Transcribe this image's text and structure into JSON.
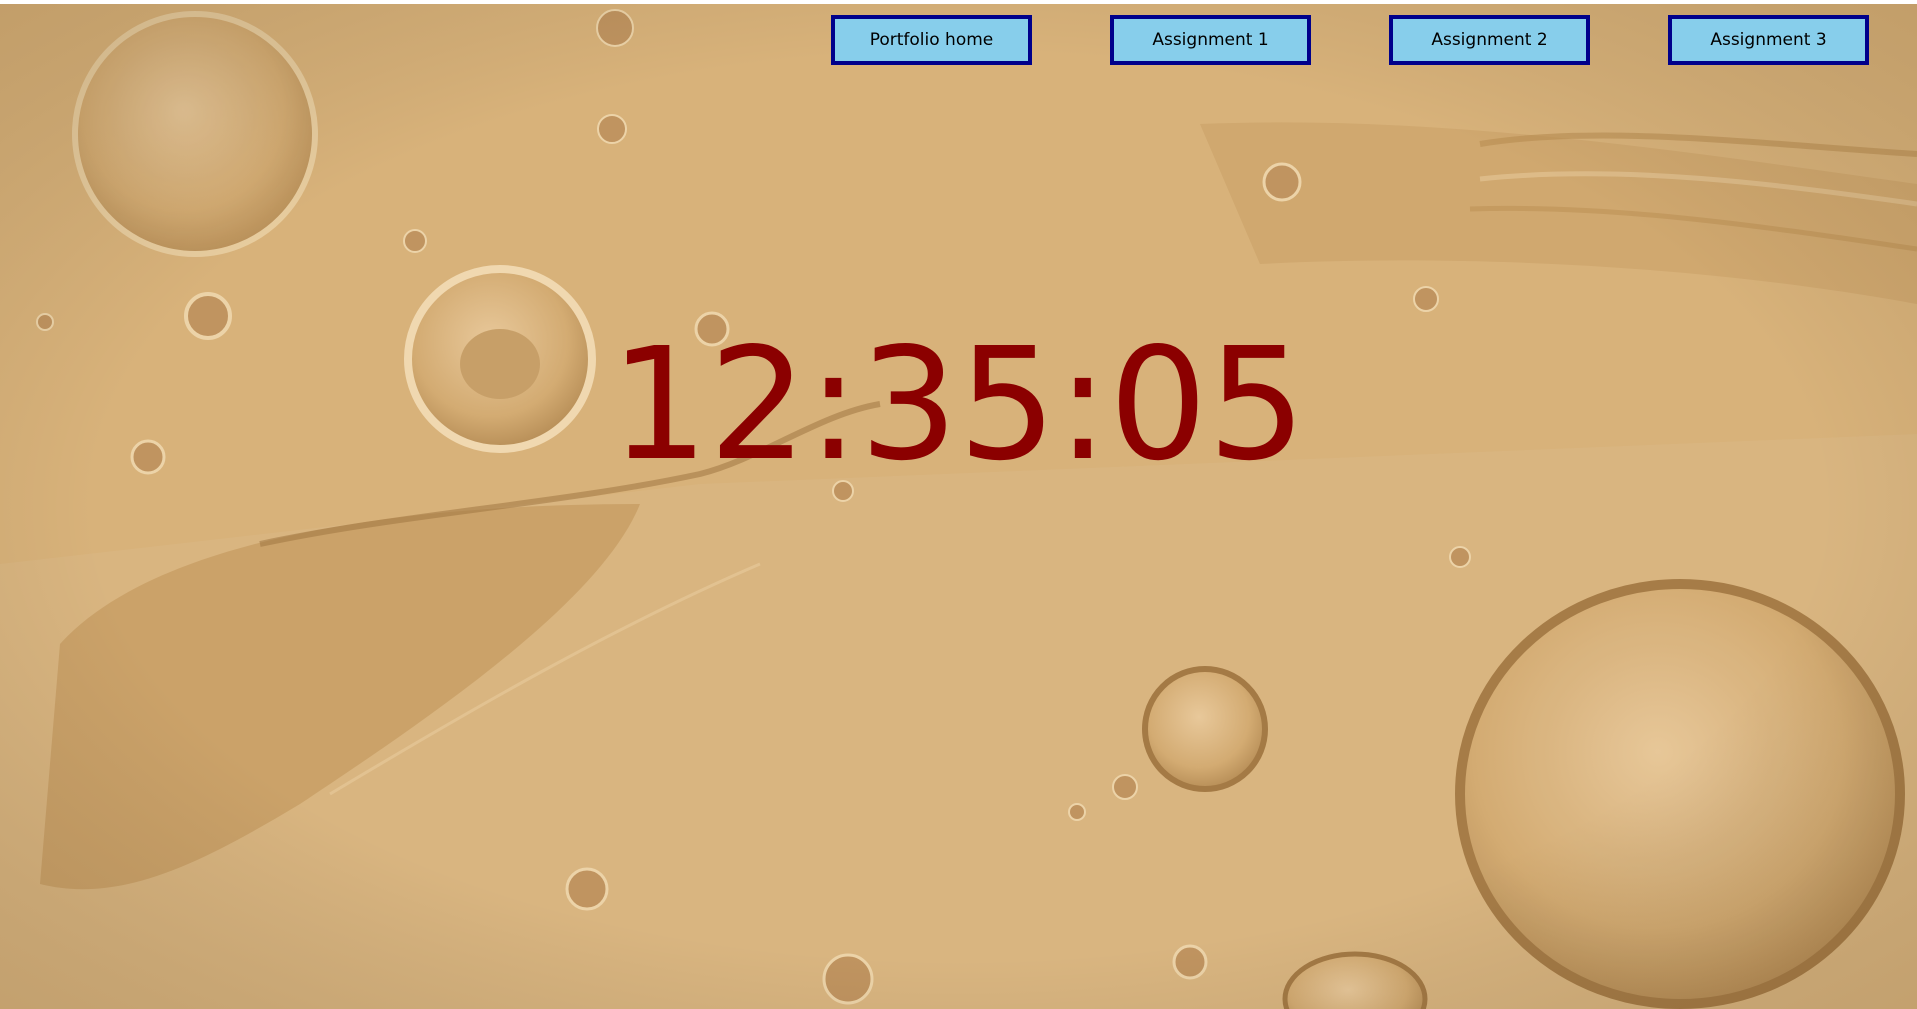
{
  "nav": {
    "buttons": [
      {
        "label": "Portfolio home"
      },
      {
        "label": "Assignment 1"
      },
      {
        "label": "Assignment 2"
      },
      {
        "label": "Assignment 3"
      }
    ]
  },
  "clock": {
    "time": "12:35:05"
  },
  "colors": {
    "button_fill": "#87ceeb",
    "button_border": "#00008b",
    "clock_text": "#8b0000",
    "background": "#d9b47c"
  }
}
